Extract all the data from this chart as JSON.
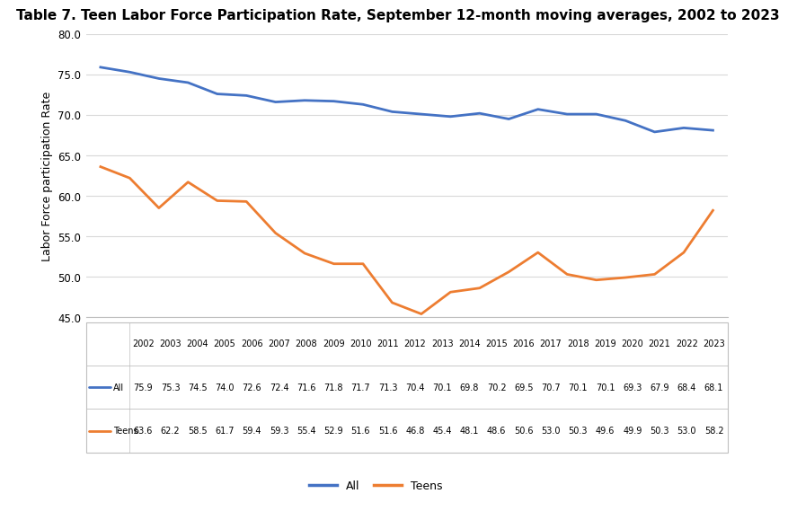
{
  "title": "Table 7. Teen Labor Force Participation Rate, September 12-month moving averages, 2002 to 2023",
  "ylabel": "Labor Force participation Rate",
  "years": [
    2002,
    2003,
    2004,
    2005,
    2006,
    2007,
    2008,
    2009,
    2010,
    2011,
    2012,
    2013,
    2014,
    2015,
    2016,
    2017,
    2018,
    2019,
    2020,
    2021,
    2022,
    2023
  ],
  "all_values": [
    75.9,
    75.3,
    74.5,
    74.0,
    72.6,
    72.4,
    71.6,
    71.8,
    71.7,
    71.3,
    70.4,
    70.1,
    69.8,
    70.2,
    69.5,
    70.7,
    70.1,
    70.1,
    69.3,
    67.9,
    68.4,
    68.1
  ],
  "teen_values": [
    63.6,
    62.2,
    58.5,
    61.7,
    59.4,
    59.3,
    55.4,
    52.9,
    51.6,
    51.6,
    46.8,
    45.4,
    48.1,
    48.6,
    50.6,
    53.0,
    50.3,
    49.6,
    49.9,
    50.3,
    53.0,
    58.2
  ],
  "all_color": "#4472C4",
  "teen_color": "#ED7D31",
  "ylim": [
    45.0,
    80.0
  ],
  "yticks": [
    45.0,
    50.0,
    55.0,
    60.0,
    65.0,
    70.0,
    75.0,
    80.0
  ],
  "line_width": 2.0,
  "background_color": "#FFFFFF",
  "grid_color": "#D9D9D9",
  "table_border_color": "#BFBFBF",
  "title_fontsize": 11,
  "axis_label_fontsize": 9,
  "tick_fontsize": 8.5,
  "table_fontsize": 7.0,
  "legend_fontsize": 9
}
